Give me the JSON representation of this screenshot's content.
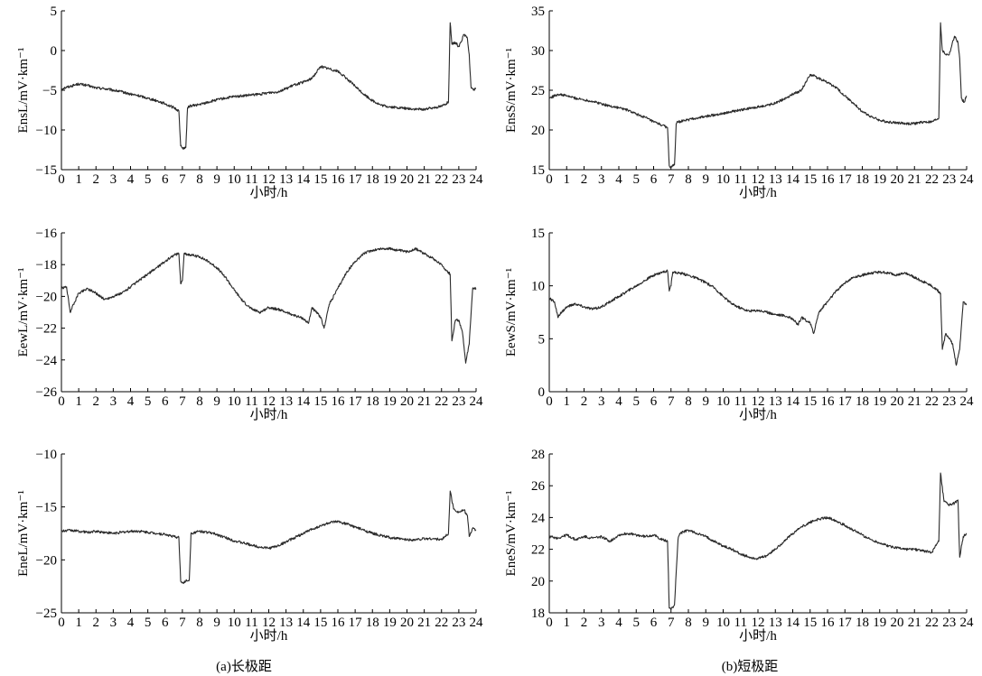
{
  "figure": {
    "captions": [
      "(a)长极距",
      "(b)短极距"
    ]
  },
  "chart_data": [
    {
      "type": "line",
      "ylabel": "EnsL/mV·km⁻¹",
      "xlabel": "小时/h",
      "xlim": [
        0,
        24
      ],
      "ylim": [
        -15,
        5
      ],
      "yticks": [
        -15,
        -10,
        -5,
        0,
        5
      ],
      "xticks": [
        0,
        1,
        2,
        3,
        4,
        5,
        6,
        7,
        8,
        9,
        10,
        11,
        12,
        13,
        14,
        15,
        16,
        17,
        18,
        19,
        20,
        21,
        22,
        23,
        24
      ],
      "grid": false,
      "line_color": "#2a2a2a",
      "series": [
        {
          "x": [
            0,
            0.5,
            1,
            1.5,
            2,
            2.5,
            3,
            3.5,
            4,
            4.5,
            5,
            5.5,
            6,
            6.5,
            6.8,
            6.9,
            7.0,
            7.2,
            7.3,
            7.4,
            8,
            8.5,
            9,
            9.5,
            10,
            10.5,
            11,
            11.5,
            12,
            12.5,
            13,
            13.5,
            14,
            14.5,
            15,
            15.5,
            16,
            16.5,
            17,
            17.5,
            18,
            18.5,
            19,
            19.5,
            20,
            20.5,
            21,
            21.5,
            22,
            22.4,
            22.5,
            22.6,
            22.8,
            23,
            23.3,
            23.5,
            23.6,
            23.7,
            23.85,
            24
          ],
          "y": [
            -4.8,
            -4.5,
            -4.2,
            -4.4,
            -4.7,
            -4.8,
            -5.0,
            -5.2,
            -5.5,
            -5.7,
            -6.0,
            -6.3,
            -6.7,
            -7.2,
            -7.6,
            -12.0,
            -12.3,
            -12.2,
            -7.2,
            -7.0,
            -6.8,
            -6.5,
            -6.2,
            -6.0,
            -5.8,
            -5.7,
            -5.6,
            -5.5,
            -5.3,
            -5.2,
            -4.8,
            -4.3,
            -4.0,
            -3.5,
            -2.0,
            -2.3,
            -2.6,
            -3.5,
            -4.5,
            -5.5,
            -6.3,
            -6.9,
            -7.1,
            -7.2,
            -7.3,
            -7.4,
            -7.4,
            -7.2,
            -7.0,
            -6.5,
            3.5,
            0.8,
            1.0,
            0.5,
            2.0,
            1.5,
            -0.5,
            -4.5,
            -5.0,
            -4.8
          ]
        }
      ]
    },
    {
      "type": "line",
      "ylabel": "EnsS/mV·km⁻¹",
      "xlabel": "小时/h",
      "xlim": [
        0,
        24
      ],
      "ylim": [
        15,
        35
      ],
      "yticks": [
        15,
        20,
        25,
        30,
        35
      ],
      "xticks": [
        0,
        1,
        2,
        3,
        4,
        5,
        6,
        7,
        8,
        9,
        10,
        11,
        12,
        13,
        14,
        15,
        16,
        17,
        18,
        19,
        20,
        21,
        22,
        23,
        24
      ],
      "grid": false,
      "line_color": "#2a2a2a",
      "series": [
        {
          "x": [
            0,
            0.5,
            1,
            1.5,
            2,
            2.5,
            3,
            3.5,
            4,
            4.5,
            5,
            5.5,
            6,
            6.5,
            6.8,
            6.9,
            7.0,
            7.2,
            7.3,
            7.4,
            8,
            8.5,
            9,
            9.5,
            10,
            10.5,
            11,
            11.5,
            12,
            12.5,
            13,
            13.5,
            14,
            14.5,
            15,
            15.5,
            16,
            16.5,
            17,
            17.5,
            18,
            18.5,
            19,
            19.5,
            20,
            20.5,
            21,
            21.5,
            22,
            22.4,
            22.5,
            22.6,
            22.8,
            23,
            23.3,
            23.5,
            23.6,
            23.7,
            23.85,
            24
          ],
          "y": [
            24.0,
            24.5,
            24.3,
            24.0,
            23.8,
            23.6,
            23.3,
            23.0,
            22.8,
            22.5,
            22.0,
            21.6,
            21.0,
            20.6,
            20.3,
            15.5,
            15.3,
            15.6,
            20.8,
            21.0,
            21.3,
            21.5,
            21.7,
            21.9,
            22.1,
            22.3,
            22.5,
            22.7,
            22.9,
            23.1,
            23.4,
            23.9,
            24.5,
            25.0,
            27.0,
            26.5,
            26.0,
            25.3,
            24.3,
            23.3,
            22.3,
            21.7,
            21.2,
            21.0,
            20.9,
            20.8,
            20.8,
            21.0,
            21.0,
            21.5,
            33.5,
            30.0,
            29.5,
            29.5,
            31.8,
            31.0,
            29.0,
            24.0,
            23.5,
            24.3
          ]
        }
      ]
    },
    {
      "type": "line",
      "ylabel": "EewL/mV·km⁻¹",
      "xlabel": "小时/h",
      "xlim": [
        0,
        24
      ],
      "ylim": [
        -26,
        -16
      ],
      "yticks": [
        -26,
        -24,
        -22,
        -20,
        -18,
        -16
      ],
      "xticks": [
        0,
        1,
        2,
        3,
        4,
        5,
        6,
        7,
        8,
        9,
        10,
        11,
        12,
        13,
        14,
        15,
        16,
        17,
        18,
        19,
        20,
        21,
        22,
        23,
        24
      ],
      "grid": false,
      "line_color": "#2a2a2a",
      "series": [
        {
          "x": [
            0,
            0.3,
            0.5,
            0.7,
            1,
            1.5,
            2,
            2.5,
            3,
            3.5,
            4,
            4.5,
            5,
            5.5,
            6,
            6.5,
            6.8,
            6.9,
            7.0,
            7.1,
            7.5,
            8,
            8.5,
            9,
            9.5,
            10,
            10.5,
            11,
            11.5,
            12,
            12.5,
            13,
            13.5,
            14,
            14.3,
            14.5,
            15,
            15.2,
            15.5,
            16,
            16.5,
            17,
            17.5,
            18,
            18.5,
            19,
            19.5,
            20,
            20.5,
            21,
            21.5,
            22,
            22.3,
            22.5,
            22.6,
            22.8,
            23,
            23.2,
            23.4,
            23.6,
            23.8,
            24
          ],
          "y": [
            -19.5,
            -19.4,
            -21.0,
            -20.5,
            -19.8,
            -19.5,
            -19.8,
            -20.2,
            -20.0,
            -19.8,
            -19.4,
            -19.0,
            -18.6,
            -18.2,
            -17.8,
            -17.4,
            -17.3,
            -19.2,
            -19.0,
            -17.3,
            -17.4,
            -17.5,
            -17.8,
            -18.2,
            -18.8,
            -19.6,
            -20.3,
            -20.8,
            -21.0,
            -20.7,
            -20.8,
            -21.0,
            -21.2,
            -21.4,
            -21.7,
            -20.7,
            -21.3,
            -22.0,
            -20.5,
            -19.5,
            -18.5,
            -17.8,
            -17.3,
            -17.1,
            -17.0,
            -17.0,
            -17.1,
            -17.2,
            -17.0,
            -17.3,
            -17.6,
            -18.0,
            -18.4,
            -18.6,
            -22.8,
            -21.5,
            -21.5,
            -22.2,
            -24.2,
            -23.0,
            -19.5,
            -19.5
          ]
        }
      ]
    },
    {
      "type": "line",
      "ylabel": "EewS/mV·km⁻¹",
      "xlabel": "小时/h",
      "xlim": [
        0,
        24
      ],
      "ylim": [
        0,
        15
      ],
      "yticks": [
        0,
        5,
        10,
        15
      ],
      "xticks": [
        0,
        1,
        2,
        3,
        4,
        5,
        6,
        7,
        8,
        9,
        10,
        11,
        12,
        13,
        14,
        15,
        16,
        17,
        18,
        19,
        20,
        21,
        22,
        23,
        24
      ],
      "grid": false,
      "line_color": "#2a2a2a",
      "series": [
        {
          "x": [
            0,
            0.3,
            0.5,
            0.7,
            1,
            1.5,
            2,
            2.5,
            3,
            3.5,
            4,
            4.5,
            5,
            5.5,
            6,
            6.5,
            6.8,
            6.9,
            7.0,
            7.1,
            7.5,
            8,
            8.5,
            9,
            9.5,
            10,
            10.5,
            11,
            11.5,
            12,
            12.5,
            13,
            13.5,
            14,
            14.3,
            14.5,
            15,
            15.2,
            15.5,
            16,
            16.5,
            17,
            17.5,
            18,
            18.5,
            19,
            19.5,
            20,
            20.5,
            21,
            21.5,
            22,
            22.3,
            22.5,
            22.6,
            22.8,
            23,
            23.2,
            23.4,
            23.6,
            23.8,
            24
          ],
          "y": [
            8.8,
            8.5,
            7.0,
            7.5,
            8.0,
            8.3,
            8.0,
            7.8,
            8.0,
            8.5,
            9.0,
            9.5,
            10.0,
            10.5,
            11.0,
            11.3,
            11.4,
            9.5,
            10.0,
            11.3,
            11.2,
            11.0,
            10.7,
            10.3,
            9.8,
            9.0,
            8.3,
            7.9,
            7.6,
            7.7,
            7.5,
            7.3,
            7.2,
            6.9,
            6.3,
            7.0,
            6.5,
            5.5,
            7.5,
            8.5,
            9.5,
            10.3,
            10.8,
            11.0,
            11.2,
            11.3,
            11.2,
            11.0,
            11.2,
            10.8,
            10.4,
            10.0,
            9.6,
            9.3,
            4.0,
            5.5,
            5.0,
            4.5,
            2.5,
            4.0,
            8.5,
            8.2
          ]
        }
      ]
    },
    {
      "type": "line",
      "ylabel": "EneL/mV·km⁻¹",
      "xlabel": "小时/h",
      "xlim": [
        0,
        24
      ],
      "ylim": [
        -25,
        -10
      ],
      "yticks": [
        -25,
        -20,
        -15,
        -10
      ],
      "xticks": [
        0,
        1,
        2,
        3,
        4,
        5,
        6,
        7,
        8,
        9,
        10,
        11,
        12,
        13,
        14,
        15,
        16,
        17,
        18,
        19,
        20,
        21,
        22,
        23,
        24
      ],
      "grid": false,
      "line_color": "#2a2a2a",
      "series": [
        {
          "x": [
            0,
            0.5,
            1,
            1.5,
            2,
            2.5,
            3,
            3.5,
            4,
            4.5,
            5,
            5.5,
            6,
            6.5,
            6.8,
            6.9,
            7.0,
            7.2,
            7.4,
            7.5,
            8,
            8.5,
            9,
            9.5,
            10,
            10.5,
            11,
            11.5,
            12,
            12.5,
            13,
            13.5,
            14,
            14.5,
            15,
            15.5,
            16,
            16.5,
            17,
            17.5,
            18,
            18.5,
            19,
            19.5,
            20,
            20.5,
            21,
            21.5,
            22,
            22.4,
            22.5,
            22.7,
            23,
            23.3,
            23.5,
            23.6,
            23.8,
            24
          ],
          "y": [
            -17.3,
            -17.2,
            -17.3,
            -17.4,
            -17.3,
            -17.4,
            -17.5,
            -17.4,
            -17.3,
            -17.3,
            -17.4,
            -17.5,
            -17.6,
            -17.8,
            -17.9,
            -22.0,
            -22.2,
            -22.0,
            -21.9,
            -17.5,
            -17.3,
            -17.4,
            -17.6,
            -17.9,
            -18.2,
            -18.4,
            -18.6,
            -18.8,
            -18.9,
            -18.7,
            -18.3,
            -17.9,
            -17.5,
            -17.1,
            -16.8,
            -16.5,
            -16.4,
            -16.6,
            -16.9,
            -17.2,
            -17.5,
            -17.7,
            -17.9,
            -18.0,
            -18.1,
            -18.1,
            -18.0,
            -18.0,
            -18.1,
            -17.5,
            -13.5,
            -15.2,
            -15.5,
            -15.3,
            -15.8,
            -17.8,
            -17.0,
            -17.2
          ]
        }
      ]
    },
    {
      "type": "line",
      "ylabel": "EneS/mV·km⁻¹",
      "xlabel": "小时/h",
      "xlim": [
        0,
        24
      ],
      "ylim": [
        18,
        28
      ],
      "yticks": [
        18,
        20,
        22,
        24,
        26,
        28
      ],
      "xticks": [
        0,
        1,
        2,
        3,
        4,
        5,
        6,
        7,
        8,
        9,
        10,
        11,
        12,
        13,
        14,
        15,
        16,
        17,
        18,
        19,
        20,
        21,
        22,
        23,
        24
      ],
      "grid": false,
      "line_color": "#2a2a2a",
      "series": [
        {
          "x": [
            0,
            0.5,
            1,
            1.5,
            2,
            2.5,
            3,
            3.5,
            4,
            4.5,
            5,
            5.5,
            6,
            6.5,
            6.8,
            6.9,
            7.0,
            7.2,
            7.4,
            7.5,
            8,
            8.5,
            9,
            9.5,
            10,
            10.5,
            11,
            11.5,
            12,
            12.5,
            13,
            13.5,
            14,
            14.5,
            15,
            15.5,
            16,
            16.5,
            17,
            17.5,
            18,
            18.5,
            19,
            19.5,
            20,
            20.5,
            21,
            21.5,
            22,
            22.4,
            22.5,
            22.7,
            23,
            23.3,
            23.5,
            23.6,
            23.8,
            24
          ],
          "y": [
            22.8,
            22.7,
            22.9,
            22.6,
            22.8,
            22.7,
            22.8,
            22.5,
            22.9,
            23.0,
            22.9,
            22.8,
            22.9,
            22.6,
            22.5,
            18.3,
            18.2,
            18.5,
            22.6,
            23.0,
            23.2,
            23.0,
            22.8,
            22.5,
            22.2,
            22.0,
            21.7,
            21.5,
            21.4,
            21.6,
            22.0,
            22.5,
            23.0,
            23.4,
            23.7,
            23.9,
            24.0,
            23.8,
            23.5,
            23.2,
            22.9,
            22.6,
            22.4,
            22.2,
            22.1,
            22.0,
            22.0,
            21.9,
            21.8,
            22.5,
            26.8,
            25.0,
            24.8,
            24.9,
            25.1,
            21.5,
            22.8,
            23.0
          ]
        }
      ]
    }
  ]
}
